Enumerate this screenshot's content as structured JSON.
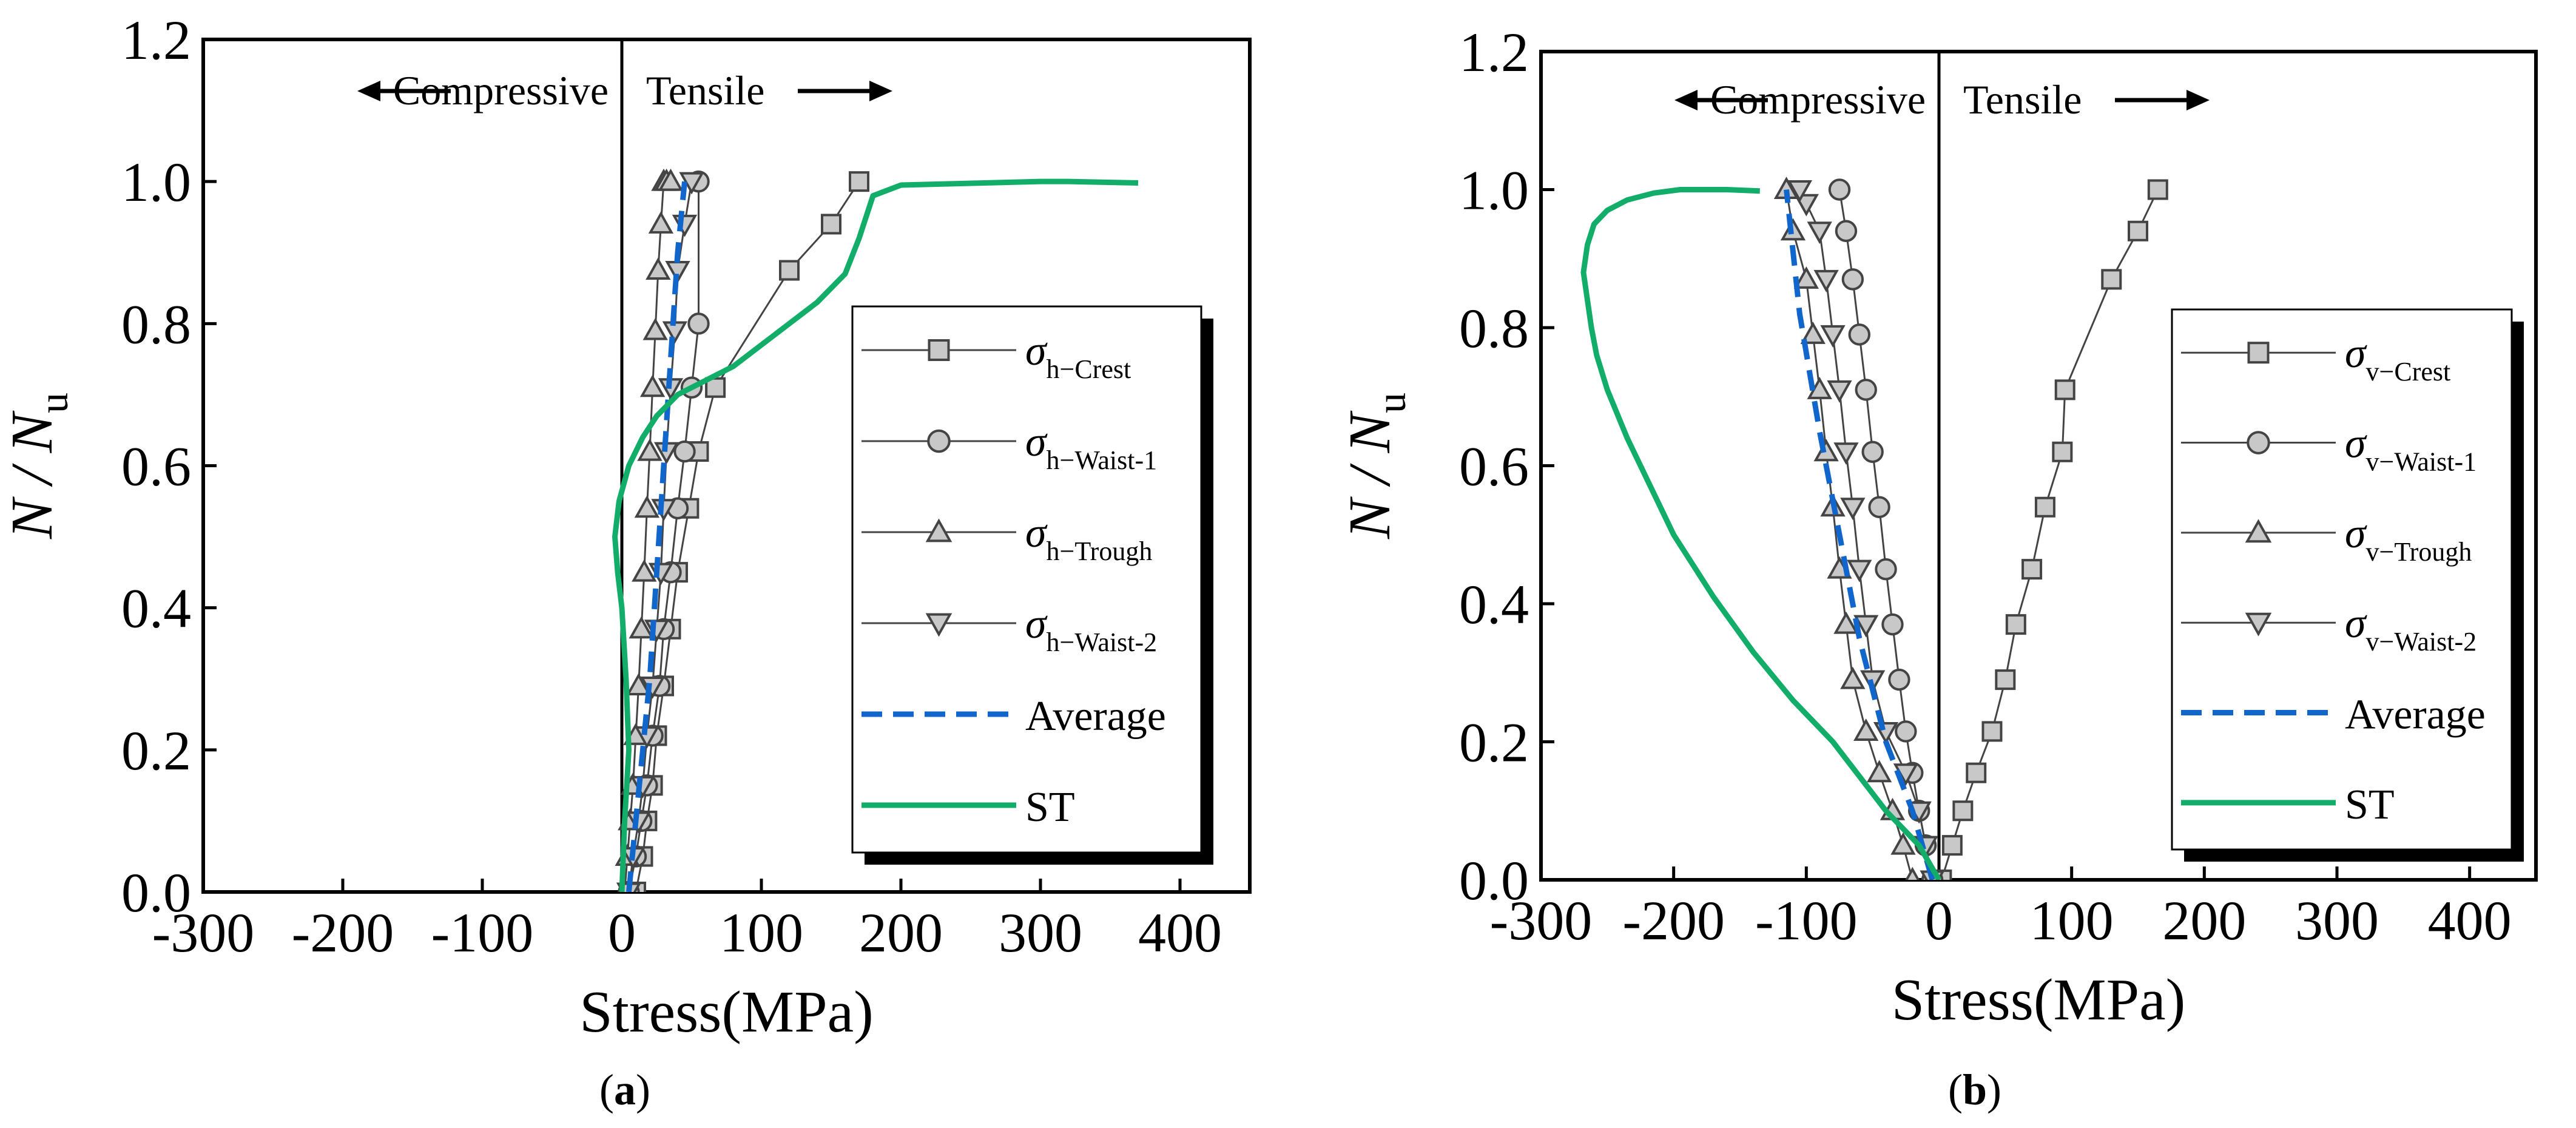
{
  "colors": {
    "marker_fill": "#c8c8c8",
    "average": "#1166cc",
    "st": "#13ad6a",
    "axis": "#000000"
  },
  "chart_data": [
    {
      "panel": "a",
      "caption": {
        "open": "(",
        "letter": "a",
        "close": ")"
      },
      "type": "line",
      "xlabel": "Stress(MPa)",
      "ylabel": {
        "main": "N / N",
        "sub": "u"
      },
      "xlim": [
        -300,
        450
      ],
      "ylim": [
        0,
        1.2
      ],
      "xticks": [
        -300,
        -200,
        -100,
        0,
        100,
        200,
        300,
        400
      ],
      "yticks": [
        "0.0",
        "0.2",
        "0.4",
        "0.6",
        "0.8",
        "1.0",
        "1.2"
      ],
      "zone_labels": {
        "left": "Compressive",
        "right": "Tensile"
      },
      "series": [
        {
          "name": "σh−Crest",
          "symbol": "σ",
          "sub": "h−Crest",
          "marker": "square",
          "x": [
            10,
            15,
            18,
            22,
            25,
            30,
            35,
            40,
            48,
            55,
            67,
            120,
            150,
            170
          ],
          "y": [
            0,
            0.05,
            0.1,
            0.15,
            0.22,
            0.29,
            0.37,
            0.45,
            0.54,
            0.62,
            0.71,
            0.875,
            0.94,
            1.0
          ]
        },
        {
          "name": "σh−Waist-1",
          "symbol": "σ",
          "sub": "h−Waist-1",
          "marker": "circle",
          "x": [
            5,
            10,
            14,
            18,
            22,
            27,
            30,
            35,
            40,
            45,
            50,
            55,
            55
          ],
          "y": [
            0,
            0.05,
            0.1,
            0.15,
            0.22,
            0.29,
            0.37,
            0.45,
            0.54,
            0.62,
            0.71,
            0.8,
            1.0
          ]
        },
        {
          "name": "σh−Trough",
          "symbol": "σ",
          "sub": "h−Trough",
          "marker": "triangle-up",
          "x": [
            2,
            4,
            6,
            8,
            10,
            12,
            14,
            16,
            18,
            20,
            22,
            24,
            26,
            28,
            30,
            32,
            35
          ],
          "y": [
            0,
            0.05,
            0.1,
            0.15,
            0.22,
            0.29,
            0.37,
            0.45,
            0.54,
            0.62,
            0.71,
            0.79,
            0.875,
            0.94,
            1.0,
            1.0,
            1.0
          ]
        },
        {
          "name": "σh−Waist-2",
          "symbol": "σ",
          "sub": "h−Waist-2",
          "marker": "triangle-down",
          "x": [
            5,
            8,
            12,
            15,
            18,
            22,
            25,
            28,
            30,
            32,
            35,
            38,
            40,
            45,
            50
          ],
          "y": [
            0,
            0.05,
            0.1,
            0.15,
            0.22,
            0.29,
            0.37,
            0.45,
            0.54,
            0.62,
            0.71,
            0.79,
            0.875,
            0.94,
            1.0
          ]
        },
        {
          "name": "Average",
          "label": "Average",
          "line": "dashed",
          "x": [
            5,
            10,
            15,
            20,
            25,
            30,
            35,
            40,
            45
          ],
          "y": [
            0,
            0.1,
            0.2,
            0.3,
            0.45,
            0.6,
            0.75,
            0.9,
            1.0
          ]
        },
        {
          "name": "ST",
          "label": "ST",
          "line": "solid",
          "x": [
            0,
            2,
            5,
            3,
            0,
            -3,
            -5,
            -2,
            5,
            15,
            25,
            40,
            60,
            80,
            100,
            120,
            140,
            160,
            170,
            180,
            200,
            300,
            320,
            370
          ],
          "y": [
            0,
            0.1,
            0.2,
            0.3,
            0.4,
            0.45,
            0.5,
            0.55,
            0.6,
            0.64,
            0.67,
            0.7,
            0.72,
            0.74,
            0.77,
            0.8,
            0.83,
            0.87,
            0.92,
            0.98,
            0.995,
            1.0,
            1.0,
            0.998
          ]
        }
      ]
    },
    {
      "panel": "b",
      "caption": {
        "open": "(",
        "letter": "b",
        "close": ")"
      },
      "type": "line",
      "xlabel": "Stress(MPa)",
      "ylabel": {
        "main": "N / N",
        "sub": "u"
      },
      "xlim": [
        -300,
        450
      ],
      "ylim": [
        0,
        1.2
      ],
      "xticks": [
        -300,
        -200,
        -100,
        0,
        100,
        200,
        300,
        400
      ],
      "yticks": [
        "0.0",
        "0.2",
        "0.4",
        "0.6",
        "0.8",
        "1.0",
        "1.2"
      ],
      "zone_labels": {
        "left": "Compressive",
        "right": "Tensile"
      },
      "series": [
        {
          "name": "σv−Crest",
          "symbol": "σ",
          "sub": "v−Crest",
          "marker": "square",
          "x": [
            2,
            10,
            18,
            28,
            40,
            50,
            58,
            70,
            80,
            93,
            95,
            130,
            150,
            165
          ],
          "y": [
            0,
            0.05,
            0.1,
            0.155,
            0.215,
            0.29,
            0.37,
            0.45,
            0.54,
            0.62,
            0.71,
            0.87,
            0.94,
            1.0
          ]
        },
        {
          "name": "σv−Waist-1",
          "symbol": "σ",
          "sub": "v−Waist-1",
          "marker": "circle",
          "x": [
            -5,
            -10,
            -15,
            -20,
            -25,
            -30,
            -35,
            -40,
            -45,
            -50,
            -55,
            -60,
            -65,
            -70,
            -75
          ],
          "y": [
            0,
            0.05,
            0.1,
            0.155,
            0.215,
            0.29,
            0.37,
            0.45,
            0.54,
            0.62,
            0.71,
            0.79,
            0.87,
            0.94,
            1.0
          ]
        },
        {
          "name": "σv−Trough",
          "symbol": "σ",
          "sub": "v−Trough",
          "marker": "triangle-up",
          "x": [
            -20,
            -27,
            -35,
            -45,
            -55,
            -65,
            -70,
            -75,
            -80,
            -85,
            -90,
            -95,
            -100,
            -110,
            -115
          ],
          "y": [
            0,
            0.05,
            0.1,
            0.155,
            0.215,
            0.29,
            0.37,
            0.45,
            0.54,
            0.62,
            0.71,
            0.79,
            0.87,
            0.94,
            1.0
          ]
        },
        {
          "name": "σv−Waist-2",
          "symbol": "σ",
          "sub": "v−Waist-2",
          "marker": "triangle-down",
          "x": [
            -5,
            -10,
            -15,
            -25,
            -40,
            -50,
            -55,
            -60,
            -65,
            -70,
            -75,
            -80,
            -85,
            -90,
            -100,
            -105
          ],
          "y": [
            0,
            0.05,
            0.1,
            0.155,
            0.215,
            0.29,
            0.37,
            0.45,
            0.54,
            0.62,
            0.71,
            0.79,
            0.87,
            0.94,
            0.98,
            1.0
          ]
        },
        {
          "name": "Average",
          "label": "Average",
          "line": "dashed",
          "x": [
            -5,
            -20,
            -40,
            -60,
            -75,
            -90,
            -105,
            -115
          ],
          "y": [
            0,
            0.1,
            0.2,
            0.35,
            0.5,
            0.65,
            0.82,
            1.0
          ]
        },
        {
          "name": "ST",
          "label": "ST",
          "line": "solid",
          "x": [
            0,
            -15,
            -40,
            -60,
            -80,
            -110,
            -140,
            -170,
            -200,
            -220,
            -235,
            -250,
            -258,
            -262,
            -265,
            -268,
            -265,
            -260,
            -250,
            -235,
            -215,
            -195,
            -160,
            -135
          ],
          "y": [
            0,
            0.05,
            0.1,
            0.15,
            0.2,
            0.26,
            0.33,
            0.41,
            0.5,
            0.58,
            0.64,
            0.71,
            0.76,
            0.8,
            0.84,
            0.88,
            0.92,
            0.95,
            0.97,
            0.985,
            0.995,
            1.0,
            1.0,
            0.998
          ]
        }
      ]
    }
  ]
}
